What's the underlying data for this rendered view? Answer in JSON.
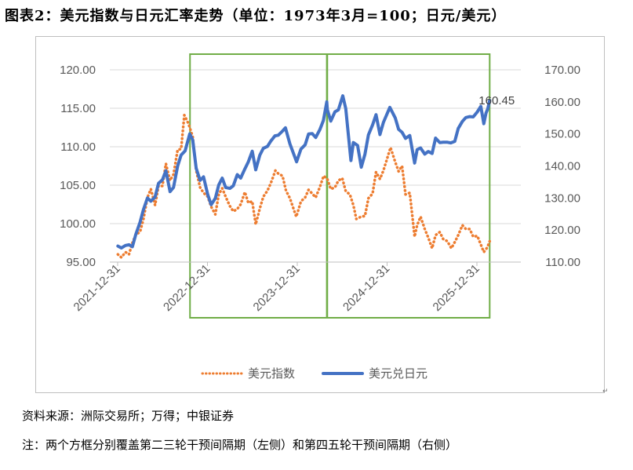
{
  "title": "图表2：美元指数与日元汇率走势（单位：1973年3月=100；日元/美元）",
  "source_note": "资料来源：洲际交易所；万得；中银证券",
  "footnote": "注：两个方框分别覆盖第二三轮干预间隔期（左侧）和第四五轮干预间隔期（右侧）",
  "colors": {
    "dxy": "#ED7D31",
    "usdjpy": "#4472C4",
    "box": "#70AD47",
    "grid": "#d9d9d9",
    "axis_text": "#595959"
  },
  "chart_data": {
    "type": "line",
    "x_axis": {
      "ticks": [
        "2021-12-31",
        "2022-12-31",
        "2023-12-31",
        "2024-12-31",
        "2025-12-31"
      ]
    },
    "y_left": {
      "min": 95,
      "max": 120,
      "ticks": [
        "95.00",
        "100.00",
        "105.00",
        "110.00",
        "115.00",
        "120.00"
      ]
    },
    "y_right": {
      "min": 110,
      "max": 170,
      "ticks": [
        "110.00",
        "120.00",
        "130.00",
        "140.00",
        "150.00",
        "160.00",
        "170.00"
      ]
    },
    "grid": true,
    "legend_position": "bottom",
    "last_value_label": "160.45",
    "highlight_periods": [
      {
        "start": "2022-10-21",
        "end": "2024-04-29",
        "side": "left"
      },
      {
        "start": "2024-05-01",
        "end": "2026-02-20",
        "side": "right"
      }
    ],
    "series": [
      {
        "name": "美元指数",
        "axis": "left",
        "style": "dotted",
        "points": [
          [
            "2022-01-01",
            96.0
          ],
          [
            "2022-01-15",
            95.6
          ],
          [
            "2022-02-01",
            96.3
          ],
          [
            "2022-02-15",
            96.0
          ],
          [
            "2022-03-01",
            97.5
          ],
          [
            "2022-03-15",
            98.6
          ],
          [
            "2022-04-01",
            98.9
          ],
          [
            "2022-04-15",
            100.6
          ],
          [
            "2022-05-01",
            103.4
          ],
          [
            "2022-05-15",
            104.5
          ],
          [
            "2022-06-01",
            102.4
          ],
          [
            "2022-06-15",
            104.9
          ],
          [
            "2022-07-01",
            104.9
          ],
          [
            "2022-07-15",
            107.8
          ],
          [
            "2022-08-01",
            105.6
          ],
          [
            "2022-08-15",
            106.4
          ],
          [
            "2022-09-01",
            109.6
          ],
          [
            "2022-09-15",
            109.7
          ],
          [
            "2022-09-28",
            114.1
          ],
          [
            "2022-10-15",
            113.0
          ],
          [
            "2022-11-01",
            111.3
          ],
          [
            "2022-11-15",
            106.9
          ],
          [
            "2022-12-01",
            104.7
          ],
          [
            "2022-12-15",
            104.0
          ],
          [
            "2023-01-01",
            103.5
          ],
          [
            "2023-01-15",
            102.2
          ],
          [
            "2023-02-01",
            101.2
          ],
          [
            "2023-02-15",
            103.8
          ],
          [
            "2023-03-01",
            104.6
          ],
          [
            "2023-03-15",
            103.5
          ],
          [
            "2023-04-01",
            102.3
          ],
          [
            "2023-04-15",
            101.6
          ],
          [
            "2023-05-01",
            101.9
          ],
          [
            "2023-05-15",
            102.5
          ],
          [
            "2023-06-01",
            104.1
          ],
          [
            "2023-06-15",
            102.7
          ],
          [
            "2023-07-01",
            102.9
          ],
          [
            "2023-07-15",
            99.9
          ],
          [
            "2023-08-01",
            102.0
          ],
          [
            "2023-08-15",
            103.5
          ],
          [
            "2023-09-01",
            104.3
          ],
          [
            "2023-09-15",
            105.3
          ],
          [
            "2023-10-03",
            106.9
          ],
          [
            "2023-10-15",
            106.5
          ],
          [
            "2023-11-01",
            106.2
          ],
          [
            "2023-11-15",
            104.3
          ],
          [
            "2023-12-01",
            103.3
          ],
          [
            "2023-12-27",
            100.9
          ],
          [
            "2024-01-15",
            102.9
          ],
          [
            "2024-02-01",
            103.4
          ],
          [
            "2024-02-15",
            104.4
          ],
          [
            "2024-03-01",
            103.9
          ],
          [
            "2024-03-15",
            103.4
          ],
          [
            "2024-04-01",
            104.8
          ],
          [
            "2024-04-16",
            106.2
          ],
          [
            "2024-05-01",
            105.8
          ],
          [
            "2024-05-15",
            104.5
          ],
          [
            "2024-06-01",
            104.7
          ],
          [
            "2024-06-15",
            105.6
          ],
          [
            "2024-07-01",
            105.9
          ],
          [
            "2024-07-15",
            104.2
          ],
          [
            "2024-08-01",
            103.8
          ],
          [
            "2024-08-15",
            102.4
          ],
          [
            "2024-08-27",
            100.6
          ],
          [
            "2024-09-15",
            100.9
          ],
          [
            "2024-10-01",
            101.0
          ],
          [
            "2024-10-15",
            103.3
          ],
          [
            "2024-11-01",
            103.9
          ],
          [
            "2024-11-15",
            106.7
          ],
          [
            "2024-12-01",
            105.8
          ],
          [
            "2024-12-15",
            106.9
          ],
          [
            "2025-01-13",
            109.9
          ],
          [
            "2025-02-01",
            108.0
          ],
          [
            "2025-02-15",
            106.8
          ],
          [
            "2025-03-01",
            107.5
          ],
          [
            "2025-03-15",
            103.8
          ],
          [
            "2025-04-01",
            104.0
          ],
          [
            "2025-04-21",
            98.3
          ],
          [
            "2025-05-01",
            99.8
          ],
          [
            "2025-05-15",
            100.9
          ],
          [
            "2025-06-01",
            99.3
          ],
          [
            "2025-06-15",
            98.2
          ],
          [
            "2025-07-01",
            96.8
          ],
          [
            "2025-07-15",
            98.5
          ],
          [
            "2025-08-01",
            98.9
          ],
          [
            "2025-08-15",
            98.0
          ],
          [
            "2025-09-01",
            97.7
          ],
          [
            "2025-09-17",
            96.8
          ],
          [
            "2025-10-01",
            97.6
          ],
          [
            "2025-10-15",
            98.5
          ],
          [
            "2025-11-01",
            99.8
          ],
          [
            "2025-11-15",
            99.3
          ],
          [
            "2025-12-01",
            99.3
          ],
          [
            "2025-12-15",
            98.3
          ],
          [
            "2026-01-01",
            98.4
          ],
          [
            "2026-01-27",
            96.3
          ],
          [
            "2026-02-10",
            96.9
          ],
          [
            "2026-02-20",
            97.7
          ]
        ]
      },
      {
        "name": "美元兑日元",
        "axis": "right",
        "style": "solid",
        "points": [
          [
            "2022-01-01",
            115.0
          ],
          [
            "2022-01-15",
            114.4
          ],
          [
            "2022-02-01",
            115.2
          ],
          [
            "2022-02-15",
            115.4
          ],
          [
            "2022-03-01",
            114.8
          ],
          [
            "2022-03-15",
            118.7
          ],
          [
            "2022-04-01",
            122.4
          ],
          [
            "2022-04-15",
            126.4
          ],
          [
            "2022-05-01",
            130.0
          ],
          [
            "2022-05-15",
            129.0
          ],
          [
            "2022-06-01",
            130.3
          ],
          [
            "2022-06-15",
            134.6
          ],
          [
            "2022-07-01",
            135.7
          ],
          [
            "2022-07-15",
            138.5
          ],
          [
            "2022-08-01",
            132.0
          ],
          [
            "2022-08-15",
            133.3
          ],
          [
            "2022-09-01",
            140.0
          ],
          [
            "2022-09-15",
            143.4
          ],
          [
            "2022-10-01",
            144.7
          ],
          [
            "2022-10-20",
            150.0
          ],
          [
            "2022-11-01",
            148.1
          ],
          [
            "2022-11-15",
            139.3
          ],
          [
            "2022-12-01",
            135.5
          ],
          [
            "2022-12-15",
            136.6
          ],
          [
            "2023-01-01",
            131.1
          ],
          [
            "2023-01-15",
            127.9
          ],
          [
            "2023-02-01",
            129.9
          ],
          [
            "2023-02-15",
            134.1
          ],
          [
            "2023-03-01",
            136.2
          ],
          [
            "2023-03-15",
            133.3
          ],
          [
            "2023-04-01",
            133.0
          ],
          [
            "2023-04-15",
            133.8
          ],
          [
            "2023-05-01",
            137.3
          ],
          [
            "2023-05-15",
            136.2
          ],
          [
            "2023-06-01",
            139.1
          ],
          [
            "2023-06-15",
            141.3
          ],
          [
            "2023-07-01",
            144.6
          ],
          [
            "2023-07-15",
            138.8
          ],
          [
            "2023-08-01",
            143.4
          ],
          [
            "2023-08-15",
            145.5
          ],
          [
            "2023-09-01",
            146.1
          ],
          [
            "2023-09-15",
            147.8
          ],
          [
            "2023-10-01",
            149.4
          ],
          [
            "2023-10-15",
            149.6
          ],
          [
            "2023-11-01",
            150.9
          ],
          [
            "2023-11-13",
            151.9
          ],
          [
            "2023-12-01",
            146.9
          ],
          [
            "2023-12-28",
            141.3
          ],
          [
            "2024-01-15",
            145.3
          ],
          [
            "2024-02-01",
            146.6
          ],
          [
            "2024-02-15",
            150.0
          ],
          [
            "2024-03-01",
            150.1
          ],
          [
            "2024-03-15",
            148.9
          ],
          [
            "2024-04-01",
            151.4
          ],
          [
            "2024-04-15",
            154.2
          ],
          [
            "2024-04-29",
            160.0
          ],
          [
            "2024-05-01",
            157.6
          ],
          [
            "2024-05-15",
            154.0
          ],
          [
            "2024-06-01",
            156.9
          ],
          [
            "2024-06-15",
            157.5
          ],
          [
            "2024-07-03",
            161.9
          ],
          [
            "2024-07-15",
            157.9
          ],
          [
            "2024-08-05",
            141.7
          ],
          [
            "2024-08-15",
            147.3
          ],
          [
            "2024-09-01",
            146.4
          ],
          [
            "2024-09-16",
            139.6
          ],
          [
            "2024-10-01",
            143.7
          ],
          [
            "2024-10-15",
            149.7
          ],
          [
            "2024-11-01",
            152.8
          ],
          [
            "2024-11-15",
            156.0
          ],
          [
            "2024-12-01",
            149.8
          ],
          [
            "2024-12-15",
            153.6
          ],
          [
            "2025-01-10",
            158.3
          ],
          [
            "2025-02-01",
            155.0
          ],
          [
            "2025-02-15",
            151.4
          ],
          [
            "2025-03-01",
            150.5
          ],
          [
            "2025-03-15",
            148.6
          ],
          [
            "2025-04-01",
            149.5
          ],
          [
            "2025-04-21",
            140.9
          ],
          [
            "2025-05-01",
            145.1
          ],
          [
            "2025-05-15",
            145.6
          ],
          [
            "2025-06-01",
            143.7
          ],
          [
            "2025-06-15",
            144.5
          ],
          [
            "2025-07-01",
            143.9
          ],
          [
            "2025-07-15",
            148.7
          ],
          [
            "2025-08-01",
            147.3
          ],
          [
            "2025-08-15",
            147.4
          ],
          [
            "2025-09-01",
            147.4
          ],
          [
            "2025-09-15",
            147.2
          ],
          [
            "2025-10-01",
            147.7
          ],
          [
            "2025-10-15",
            151.7
          ],
          [
            "2025-11-01",
            153.9
          ],
          [
            "2025-11-15",
            155.1
          ],
          [
            "2025-12-01",
            155.4
          ],
          [
            "2025-12-15",
            155.3
          ],
          [
            "2026-01-01",
            156.9
          ],
          [
            "2026-01-15",
            158.6
          ],
          [
            "2026-01-27",
            153.2
          ],
          [
            "2026-02-05",
            156.5
          ],
          [
            "2026-02-12",
            157.8
          ],
          [
            "2026-02-20",
            160.45
          ]
        ]
      }
    ]
  }
}
